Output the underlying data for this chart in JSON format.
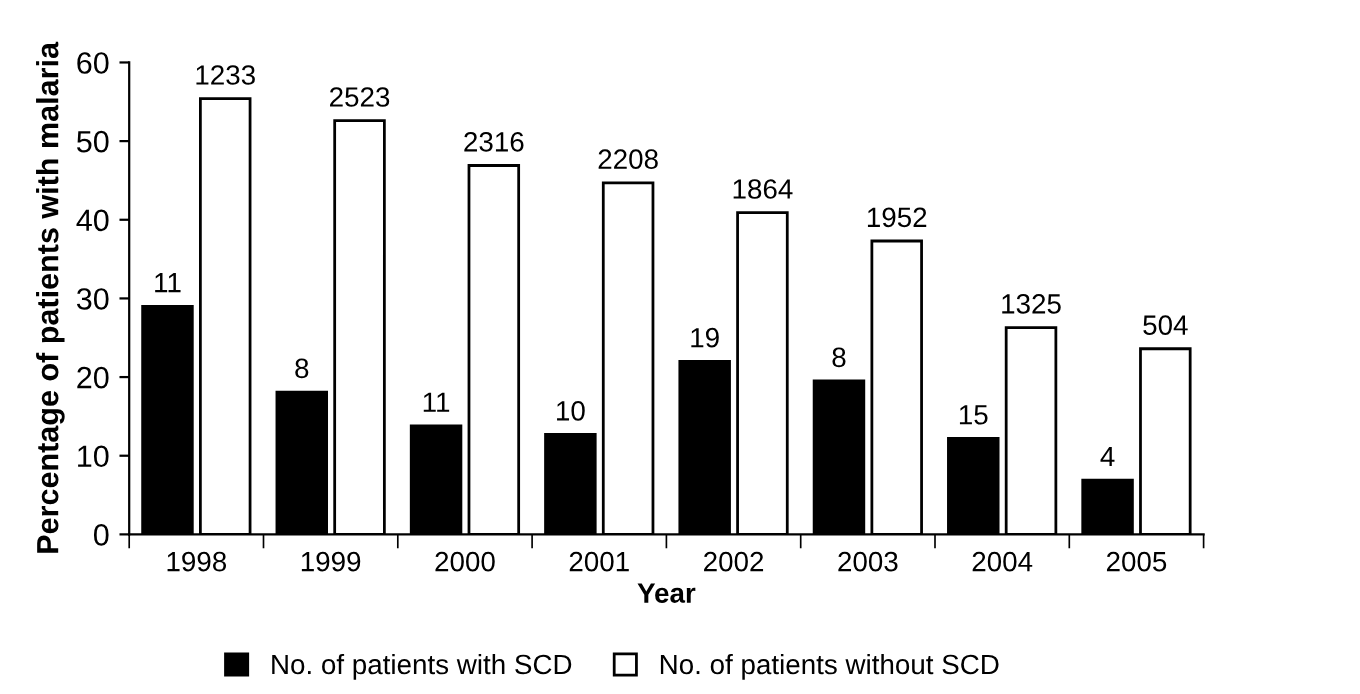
{
  "chart_data": {
    "type": "bar",
    "xlabel": "Year",
    "ylabel": "Percentage of patients with malaria",
    "categories": [
      "1998",
      "1999",
      "2000",
      "2001",
      "2002",
      "2003",
      "2004",
      "2005"
    ],
    "series": [
      {
        "name": "No. of patients with SCD",
        "color": "#000000",
        "values": [
          29.0,
          18.1,
          13.8,
          12.7,
          22.0,
          19.5,
          12.2,
          6.9
        ]
      },
      {
        "name": "No. of patients without SCD",
        "color": "#ffffff",
        "values": [
          55.4,
          52.6,
          46.9,
          44.7,
          40.9,
          37.3,
          26.3,
          23.6
        ]
      }
    ],
    "annotations": [
      {
        "text": "11",
        "x": "1998",
        "y": 29.0
      },
      {
        "text": "8",
        "x": "1999",
        "y": 18.1
      },
      {
        "text": "11",
        "x": "2000",
        "y": 13.8
      },
      {
        "text": "10",
        "x": "2001",
        "y": 12.7
      },
      {
        "text": "19",
        "x": "2002",
        "y": 22.0
      },
      {
        "text": "8",
        "x": "2003",
        "y": 19.5
      },
      {
        "text": "15",
        "x": "2004",
        "y": 12.2
      },
      {
        "text": "4",
        "x": "2005",
        "y": 6.9
      },
      {
        "text": "1233",
        "x": "1998",
        "y": 55.4
      },
      {
        "text": "2523",
        "x": "1999",
        "y": 52.6
      },
      {
        "text": "2316",
        "x": "2000",
        "y": 46.9
      },
      {
        "text": "2208",
        "x": "2001",
        "y": 44.7
      },
      {
        "text": "1864",
        "x": "2002",
        "y": 40.9
      },
      {
        "text": "1952",
        "x": "2003",
        "y": 37.3
      },
      {
        "text": "1325",
        "x": "2004",
        "y": 26.3
      },
      {
        "text": "504",
        "x": "2005",
        "y": 23.6
      }
    ],
    "ylim": [
      0,
      60
    ],
    "yticks": [
      0,
      10,
      20,
      30,
      40,
      50,
      60
    ],
    "grid": false,
    "legend": "bottom"
  }
}
